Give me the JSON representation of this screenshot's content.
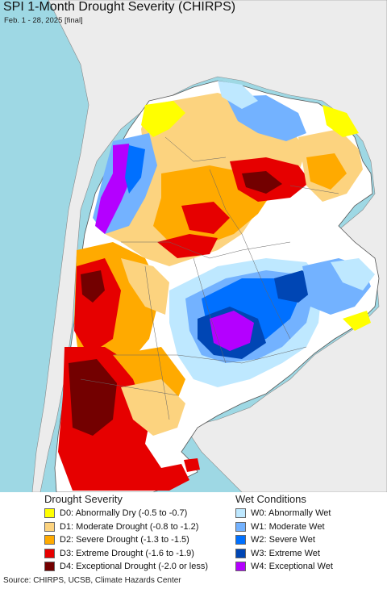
{
  "title": "SPI 1-Month Drought Severity (CHIRPS)",
  "subtitle": "Feb. 1 - 28, 2025 [final]",
  "legend": {
    "drought": {
      "heading": "Drought Severity",
      "items": [
        {
          "label": "D0: Abnormally Dry (-0.5 to -0.7)",
          "color": "#ffff00"
        },
        {
          "label": "D1: Moderate Drought (-0.8 to -1.2)",
          "color": "#fcd37f"
        },
        {
          "label": "D2: Severe Drought (-1.3 to -1.5)",
          "color": "#ffaa00"
        },
        {
          "label": "D3: Extreme Drought (-1.6 to -1.9)",
          "color": "#e60000"
        },
        {
          "label": "D4: Exceptional Drought (-2.0 or less)",
          "color": "#730000"
        }
      ]
    },
    "wet": {
      "heading": "Wet Conditions",
      "items": [
        {
          "label": "W0: Abnormally Wet",
          "color": "#bee8ff"
        },
        {
          "label": "W1: Moderate Wet",
          "color": "#73b2ff"
        },
        {
          "label": "W2: Severe Wet",
          "color": "#0070ff"
        },
        {
          "label": "W3: Extreme Wet",
          "color": "#0046b4"
        },
        {
          "label": "W4: Exceptional Wet",
          "color": "#b400ff"
        }
      ]
    }
  },
  "source": "Source: CHIRPS, UCSB, Climate Hazards Center"
}
